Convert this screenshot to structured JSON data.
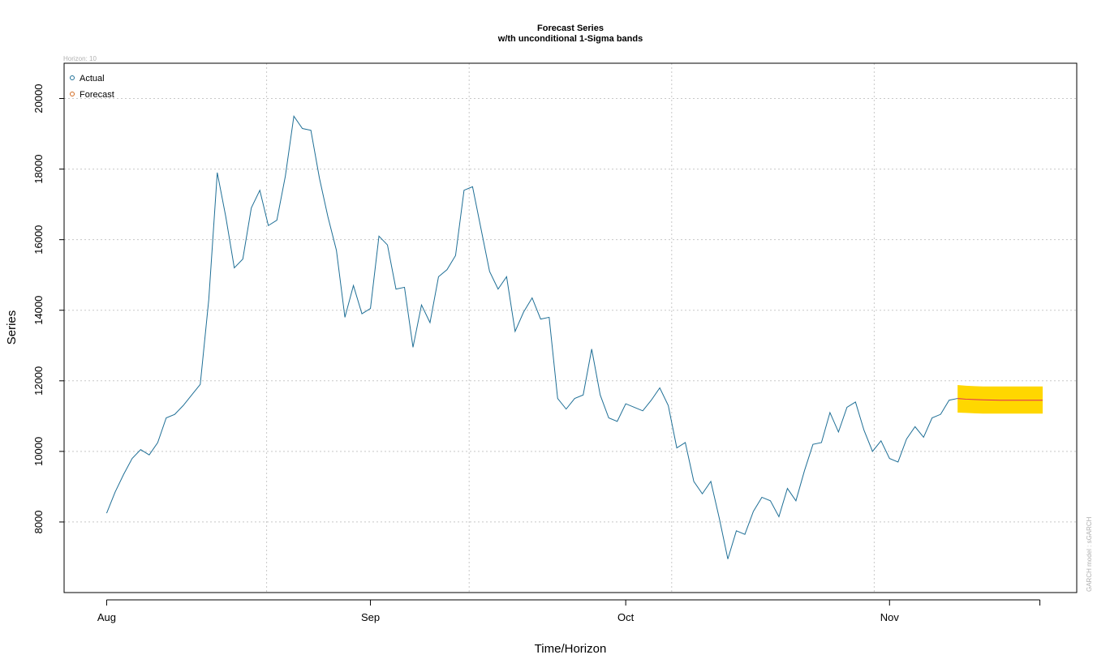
{
  "chart_data": {
    "type": "line",
    "title": "Forecast Series",
    "subtitle": "w/th unconditional 1-Sigma bands",
    "horizon_label": "Horizon: 10",
    "side_note": "GARCH model : sGARCH",
    "xlabel": "Time/Horizon",
    "ylabel": "Series",
    "ylim": [
      6000,
      21000
    ],
    "y_ticks": [
      8000,
      10000,
      12000,
      14000,
      16000,
      18000,
      20000
    ],
    "x_ticks": [
      {
        "label": "Aug",
        "day": 0
      },
      {
        "label": "Sep",
        "day": 31
      },
      {
        "label": "Oct",
        "day": 61
      },
      {
        "label": "Nov",
        "day": 92
      }
    ],
    "x_range_days": [
      -5,
      114
    ],
    "grid": true,
    "legend_position": "top-left",
    "legend": [
      {
        "label": "Actual",
        "color": "#1f6f96"
      },
      {
        "label": "Forecast",
        "color": "#d2691e"
      }
    ],
    "colors": {
      "actual": "#1f6f96",
      "forecast": "#e0245e",
      "band": "#ffd700"
    },
    "series": [
      {
        "name": "Actual",
        "start_day": 0,
        "values": [
          8250,
          8850,
          9350,
          9800,
          10050,
          9900,
          10250,
          10950,
          11050,
          11300,
          11600,
          11900,
          14300,
          17900,
          16650,
          15200,
          15450,
          16900,
          17400,
          16400,
          16550,
          17800,
          19500,
          19150,
          19100,
          17750,
          16650,
          15700,
          13800,
          14700,
          13900,
          14050,
          16100,
          15850,
          14600,
          14650,
          12950,
          14150,
          13650,
          14950,
          15150,
          15550,
          17400,
          17500,
          16300,
          15100,
          14600,
          14950,
          13400,
          13950,
          14350,
          13750,
          13800,
          11500,
          11200,
          11500,
          11600,
          12900,
          11600,
          10950,
          10850,
          11350,
          11250,
          11150,
          11450,
          11800,
          11300,
          10100,
          10250,
          9150,
          8800,
          9150,
          8100,
          6950,
          7750,
          7650,
          8300,
          8700,
          8600,
          8150,
          8950,
          8600,
          9450,
          10200,
          10250,
          11100,
          10550,
          11250,
          11400,
          10600,
          10000,
          10300,
          9800,
          9700,
          10350,
          10700,
          10400,
          10950,
          11050,
          11450,
          11500
        ]
      },
      {
        "name": "Forecast",
        "start_day": 100,
        "values": [
          11500,
          11480,
          11470,
          11460,
          11455,
          11450,
          11450,
          11450,
          11450,
          11450,
          11450
        ],
        "upper": [
          11880,
          11860,
          11850,
          11840,
          11840,
          11840,
          11840,
          11840,
          11840,
          11840,
          11840
        ],
        "lower": [
          11100,
          11090,
          11080,
          11070,
          11070,
          11070,
          11070,
          11070,
          11070,
          11070,
          11070
        ]
      }
    ]
  }
}
